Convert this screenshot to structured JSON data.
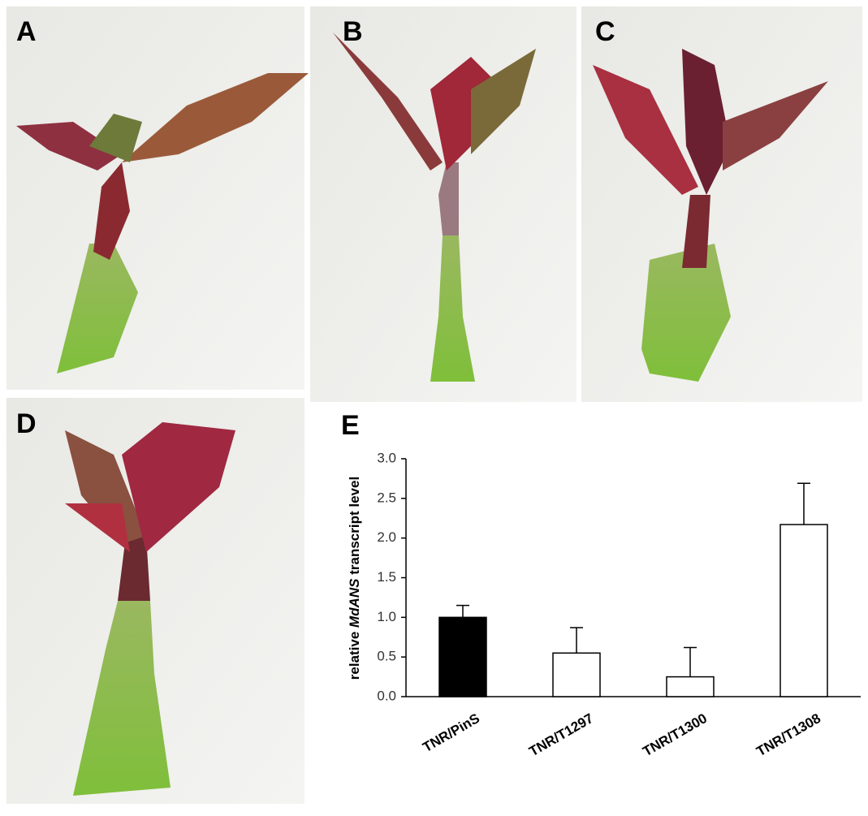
{
  "panels": [
    "A",
    "B",
    "C",
    "D",
    "E"
  ],
  "chart_data": {
    "type": "bar",
    "ylabel_parts": [
      "relative ",
      "MdANS",
      " transcript level"
    ],
    "categories": [
      "TNR/PinS",
      "TNR/T1297",
      "TNR/T1300",
      "TNR/T1308"
    ],
    "values": [
      1.0,
      0.55,
      0.25,
      2.17
    ],
    "errors": [
      0.15,
      0.32,
      0.37,
      0.52
    ],
    "colors": [
      "#000000",
      "#ffffff",
      "#ffffff",
      "#ffffff"
    ],
    "ylim": [
      0,
      3
    ],
    "yticks": [
      {
        "value": 0,
        "label": "0.0"
      },
      {
        "value": 0.5,
        "label": "0.5"
      },
      {
        "value": 1,
        "label": "1.0"
      },
      {
        "value": 1.5,
        "label": "1.5"
      },
      {
        "value": 2,
        "label": "2.0"
      },
      {
        "value": 2.5,
        "label": "2.5"
      },
      {
        "value": 3,
        "label": "3.0"
      }
    ]
  }
}
